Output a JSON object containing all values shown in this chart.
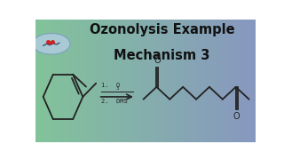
{
  "title_line1": "Ozonolysis Example",
  "title_line2": "Mechanism 3",
  "title_fontsize": 10.5,
  "title_color": "#111111",
  "bg_color_left": "#82c49a",
  "bg_color_right": "#8898c0",
  "line_color": "#222222",
  "line_width": 1.3,
  "reagent1": "1.  O",
  "reagent1_sub": "3",
  "reagent2": "2.  DMS"
}
